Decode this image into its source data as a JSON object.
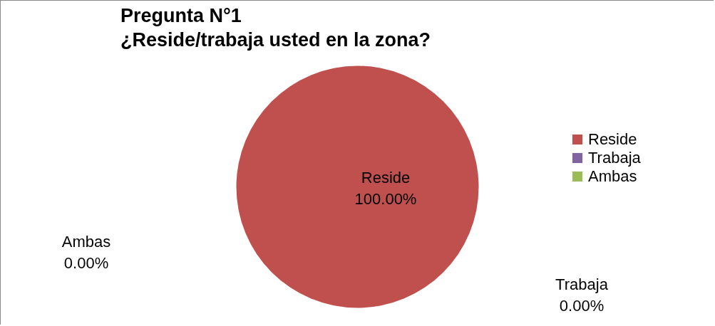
{
  "chart_data": {
    "type": "pie",
    "title": "Pregunta N°1\n¿Reside/trabaja usted en la zona?",
    "categories": [
      "Reside",
      "Trabaja",
      "Ambas"
    ],
    "values": [
      100,
      0,
      0
    ],
    "colors": [
      "#c0504d",
      "#8064a2",
      "#9bbb59"
    ],
    "value_labels": [
      "100.00%",
      "0.00%",
      "0.00%"
    ],
    "legend": "right"
  }
}
